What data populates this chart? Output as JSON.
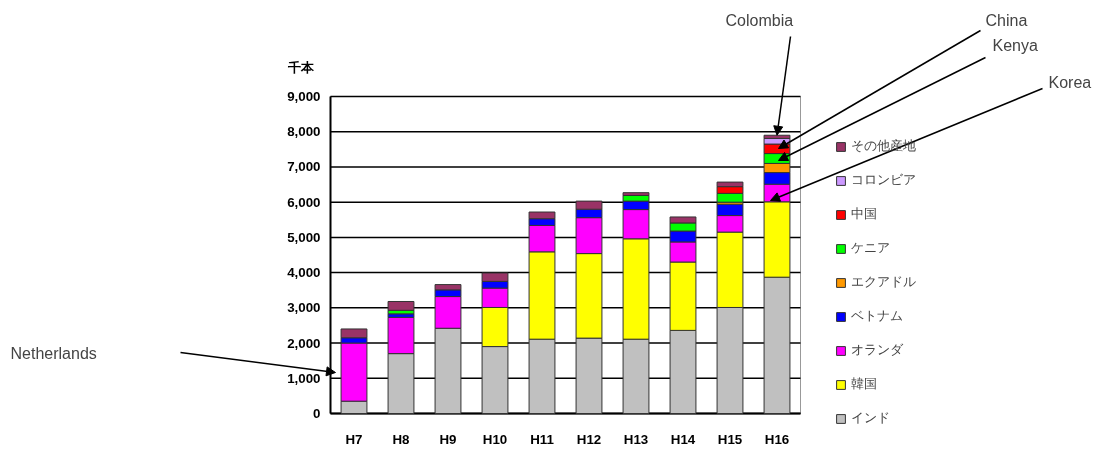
{
  "chart_data": {
    "type": "bar",
    "stacked": true,
    "ylabel": "千本",
    "categories": [
      "H7",
      "H8",
      "H9",
      "H10",
      "H11",
      "H12",
      "H13",
      "H14",
      "H15",
      "H16"
    ],
    "ylim": [
      0,
      9000
    ],
    "yticks": [
      {
        "value": 0,
        "label": "0"
      },
      {
        "value": 1000,
        "label": "1,000"
      },
      {
        "value": 2000,
        "label": "2,000"
      },
      {
        "value": 3000,
        "label": "3,000"
      },
      {
        "value": 4000,
        "label": "4,000"
      },
      {
        "value": 5000,
        "label": "5,000"
      },
      {
        "value": 6000,
        "label": "6,000"
      },
      {
        "value": 7000,
        "label": "7,000"
      },
      {
        "value": 8000,
        "label": "8,000"
      },
      {
        "value": 9000,
        "label": "9,000"
      }
    ],
    "grid": "y",
    "legend": "right",
    "series": [
      {
        "name": "インド",
        "color": "#c0c0c0",
        "values": [
          350,
          1700,
          2420,
          1900,
          2110,
          2140,
          2110,
          2360,
          3010,
          3870
        ]
      },
      {
        "name": "韓国",
        "color": "#ffff00",
        "values": [
          null,
          null,
          null,
          1110,
          2480,
          2400,
          2850,
          1940,
          2140,
          2140
        ]
      },
      {
        "name": "オランダ",
        "color": "#ff00ff",
        "values": [
          1650,
          1030,
          900,
          550,
          750,
          1020,
          830,
          570,
          470,
          500
        ]
      },
      {
        "name": "ベトナム",
        "color": "#0000ff",
        "values": [
          150,
          100,
          190,
          190,
          190,
          240,
          240,
          310,
          320,
          330
        ]
      },
      {
        "name": "エクアドル",
        "color": "#ff9900",
        "values": [
          null,
          null,
          null,
          null,
          null,
          null,
          null,
          null,
          60,
          260
        ]
      },
      {
        "name": "ケニア",
        "color": "#00ff00",
        "values": [
          null,
          100,
          null,
          null,
          null,
          null,
          160,
          230,
          250,
          280
        ]
      },
      {
        "name": "中国",
        "color": "#ff0000",
        "values": [
          null,
          null,
          null,
          null,
          null,
          null,
          null,
          null,
          190,
          270
        ]
      },
      {
        "name": "コロンビア",
        "color": "#cc99ff",
        "values": [
          null,
          null,
          null,
          null,
          null,
          null,
          null,
          null,
          null,
          160
        ]
      },
      {
        "name": "その他産地",
        "color": "#993366",
        "values": [
          250,
          250,
          150,
          240,
          190,
          230,
          80,
          170,
          130,
          90
        ]
      }
    ],
    "annotations": [
      "Netherlands",
      "Korea",
      "Kenya",
      "China",
      {
        "text": "Colombia",
        "x": "H16",
        "y": 7900
      }
    ]
  }
}
